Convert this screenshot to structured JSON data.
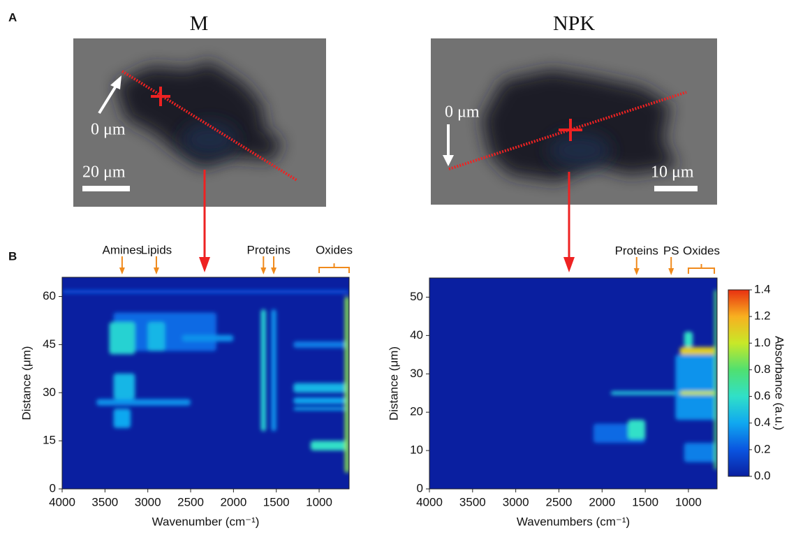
{
  "panels": [
    "A",
    "B"
  ],
  "images": [
    {
      "origin_label": "0 μm",
      "scale_label": "20 μm"
    },
    {
      "origin_label": "0 μm",
      "scale_label": "10 μm"
    }
  ],
  "chart_data": [
    {
      "type": "heatmap",
      "title": "M",
      "xlabel": "Wavenumber (cm⁻¹)",
      "ylabel": "Distance (μm)",
      "xlim": [
        4000,
        650
      ],
      "xticks": [
        4000,
        3500,
        3000,
        2500,
        2000,
        1500,
        1000
      ],
      "ylim": [
        0,
        66
      ],
      "yticks": [
        0,
        15,
        30,
        45,
        60
      ],
      "background": 0,
      "annotations": [
        {
          "text": "Amines",
          "wavenumber": 3300
        },
        {
          "text": "Lipids",
          "wavenumber": 2900
        }
      ],
      "double_annotations": [
        {
          "text": "Proteins",
          "wavenumber": [
            1650,
            1530
          ]
        }
      ],
      "brackets": [
        {
          "text": "Oxides",
          "wavenumber": [
            1000,
            650
          ]
        }
      ],
      "bands": [
        {
          "wavenumber": [
            3400,
            2200
          ],
          "distance": [
            43,
            55
          ],
          "absorbance": 0.25
        },
        {
          "wavenumber": [
            3450,
            3150
          ],
          "distance": [
            42,
            52
          ],
          "absorbance": 0.55
        },
        {
          "wavenumber": [
            3000,
            2800
          ],
          "distance": [
            43,
            52
          ],
          "absorbance": 0.45
        },
        {
          "wavenumber": [
            2600,
            2000
          ],
          "distance": [
            46,
            48
          ],
          "absorbance": 0.35
        },
        {
          "wavenumber": [
            3400,
            3150
          ],
          "distance": [
            28,
            36
          ],
          "absorbance": 0.45
        },
        {
          "wavenumber": [
            3400,
            3200
          ],
          "distance": [
            19,
            25
          ],
          "absorbance": 0.4
        },
        {
          "wavenumber": [
            3600,
            2500
          ],
          "distance": [
            26,
            28
          ],
          "absorbance": 0.35
        },
        {
          "wavenumber": [
            1680,
            1620
          ],
          "distance": [
            18,
            56
          ],
          "absorbance": 0.55
        },
        {
          "wavenumber": [
            1560,
            1500
          ],
          "distance": [
            18,
            56
          ],
          "absorbance": 0.35
        },
        {
          "wavenumber": [
            1300,
            650
          ],
          "distance": [
            30,
            33
          ],
          "absorbance": 0.45
        },
        {
          "wavenumber": [
            1300,
            650
          ],
          "distance": [
            26.5,
            28.5
          ],
          "absorbance": 0.4
        },
        {
          "wavenumber": [
            1300,
            650
          ],
          "distance": [
            24.5,
            25.5
          ],
          "absorbance": 0.4
        },
        {
          "wavenumber": [
            1300,
            650
          ],
          "distance": [
            44,
            46
          ],
          "absorbance": 0.3
        },
        {
          "wavenumber": [
            1100,
            650
          ],
          "distance": [
            12,
            15
          ],
          "absorbance": 0.6
        },
        {
          "wavenumber": [
            4000,
            650
          ],
          "distance": [
            61,
            62
          ],
          "absorbance": 0.2
        },
        {
          "wavenumber": [
            700,
            650
          ],
          "distance": [
            5,
            60
          ],
          "absorbance": 0.9
        }
      ]
    },
    {
      "type": "heatmap",
      "title": "NPK",
      "xlabel": "Wavenumbers (cm⁻¹)",
      "ylabel": "Distance (μm)",
      "xlim": [
        4000,
        668
      ],
      "xticks": [
        4000,
        3500,
        3000,
        2500,
        2000,
        1500,
        1000
      ],
      "ylim": [
        0,
        55
      ],
      "yticks": [
        0,
        10,
        20,
        30,
        40,
        50
      ],
      "background": 0,
      "annotations": [
        {
          "text": "Proteins",
          "wavenumber": 1600
        },
        {
          "text": "PS",
          "wavenumber": 1200
        }
      ],
      "double_annotations": [],
      "brackets": [
        {
          "text": "Oxides",
          "wavenumber": [
            1000,
            700
          ]
        }
      ],
      "bands": [
        {
          "wavenumber": [
            2100,
            1500
          ],
          "distance": [
            12,
            17
          ],
          "absorbance": 0.25
        },
        {
          "wavenumber": [
            1700,
            1500
          ],
          "distance": [
            13,
            18
          ],
          "absorbance": 0.6
        },
        {
          "wavenumber": [
            1900,
            668
          ],
          "distance": [
            24.5,
            25.5
          ],
          "absorbance": 0.5
        },
        {
          "wavenumber": [
            1150,
            668
          ],
          "distance": [
            18,
            35
          ],
          "absorbance": 0.35
        },
        {
          "wavenumber": [
            1050,
            668
          ],
          "distance": [
            7,
            12
          ],
          "absorbance": 0.3
        },
        {
          "wavenumber": [
            1050,
            950
          ],
          "distance": [
            37,
            41
          ],
          "absorbance": 0.6
        },
        {
          "wavenumber": [
            1100,
            668
          ],
          "distance": [
            35,
            37
          ],
          "absorbance": 1.1
        },
        {
          "wavenumber": [
            1100,
            668
          ],
          "distance": [
            24.5,
            25.5
          ],
          "absorbance": 1.0
        },
        {
          "wavenumber": [
            700,
            668
          ],
          "distance": [
            5,
            52
          ],
          "absorbance": 0.8
        }
      ],
      "colorbar": {
        "label": "Absorbance (a.u.)",
        "lim": [
          0,
          1.4
        ],
        "ticks": [
          {
            "value": 0,
            "label": "0.0"
          },
          0.2,
          0.4,
          0.6,
          0.8,
          {
            "value": 1,
            "label": "1.0"
          },
          1.2,
          1.4
        ],
        "colors": [
          "#0a1fa0",
          "#0a55e0",
          "#10a8f0",
          "#30e0c8",
          "#50e070",
          "#c8e828",
          "#f8b020",
          "#e83010"
        ]
      }
    }
  ]
}
